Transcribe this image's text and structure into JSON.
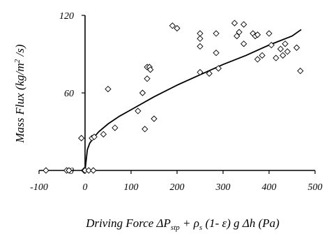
{
  "chart_data": {
    "type": "scatter",
    "title": "",
    "xlabel_parts": {
      "lead": "Driving Force  ",
      "dP": "ΔP",
      "sub_stp": "stp",
      "mid": " + ρ",
      "sub_s": "s",
      "tail": " (1- ε) g Δh  (Pa)"
    },
    "ylabel_parts": {
      "lead": "Mass Flux (kg/m",
      "sup": "2",
      "tail": " /s)"
    },
    "xlim": [
      -100,
      500
    ],
    "ylim": [
      0,
      120
    ],
    "x_ticks": [
      -100,
      0,
      100,
      200,
      300,
      400,
      500
    ],
    "x_tick_labels": [
      "-100",
      "0",
      "100",
      "200",
      "300",
      "400",
      "500"
    ],
    "y_ticks": [
      0,
      60,
      120
    ],
    "y_tick_labels": [
      "0",
      "60",
      "120"
    ],
    "grid": false,
    "marker": "diamond-open",
    "points": [
      [
        -85,
        0
      ],
      [
        -40,
        0
      ],
      [
        -35,
        0
      ],
      [
        -2,
        0
      ],
      [
        0,
        0
      ],
      [
        8,
        0
      ],
      [
        18,
        0
      ],
      [
        -8,
        25
      ],
      [
        15,
        25
      ],
      [
        20,
        26
      ],
      [
        40,
        28
      ],
      [
        50,
        63
      ],
      [
        65,
        33
      ],
      [
        115,
        46
      ],
      [
        125,
        60
      ],
      [
        130,
        32
      ],
      [
        135,
        71
      ],
      [
        135,
        80
      ],
      [
        140,
        80
      ],
      [
        142,
        78
      ],
      [
        150,
        40
      ],
      [
        190,
        112
      ],
      [
        200,
        110
      ],
      [
        250,
        106
      ],
      [
        250,
        102
      ],
      [
        250,
        96
      ],
      [
        250,
        76
      ],
      [
        270,
        75
      ],
      [
        285,
        106
      ],
      [
        285,
        91
      ],
      [
        290,
        79
      ],
      [
        325,
        114
      ],
      [
        330,
        104
      ],
      [
        335,
        107
      ],
      [
        345,
        113
      ],
      [
        345,
        98
      ],
      [
        365,
        106
      ],
      [
        370,
        104
      ],
      [
        375,
        105
      ],
      [
        375,
        86
      ],
      [
        385,
        89
      ],
      [
        400,
        106
      ],
      [
        405,
        97
      ],
      [
        415,
        87
      ],
      [
        425,
        94
      ],
      [
        430,
        89
      ],
      [
        435,
        98
      ],
      [
        440,
        92
      ],
      [
        460,
        95
      ],
      [
        468,
        77
      ]
    ],
    "fit_curve": {
      "x": [
        0,
        5,
        10,
        20,
        30,
        50,
        75,
        100,
        150,
        200,
        250,
        300,
        350,
        400,
        450,
        470
      ],
      "y": [
        0,
        16,
        21,
        26,
        30,
        36,
        42,
        47,
        57,
        66,
        74,
        82,
        89,
        97,
        104,
        109
      ]
    }
  }
}
